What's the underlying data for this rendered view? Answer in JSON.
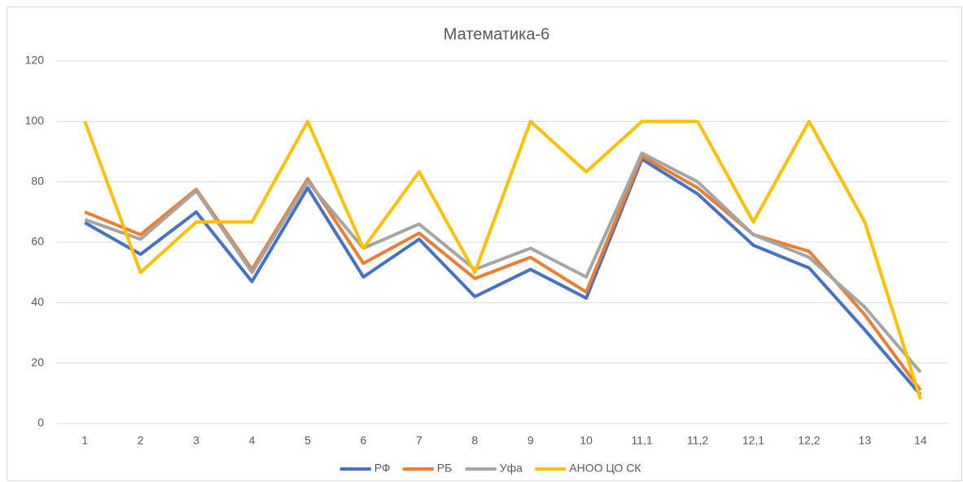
{
  "chart_data": {
    "type": "line",
    "title": "Математика-6",
    "categories": [
      "1",
      "2",
      "3",
      "4",
      "5",
      "6",
      "7",
      "8",
      "9",
      "10",
      "11,1",
      "11,2",
      "12,1",
      "12,2",
      "13",
      "14"
    ],
    "series": [
      {
        "name": "РФ",
        "color": "#4472c4",
        "values": [
          66.5,
          56,
          70,
          47,
          78,
          48.5,
          61,
          42,
          51,
          41.5,
          87.5,
          76,
          59,
          51.5,
          31,
          9.5
        ]
      },
      {
        "name": "РБ",
        "color": "#ed7d31",
        "values": [
          70,
          62.5,
          77.5,
          51,
          81,
          53,
          63,
          48,
          55,
          43.5,
          88.5,
          78,
          62.5,
          57,
          36,
          11
        ]
      },
      {
        "name": "Уфа",
        "color": "#a5a5a5",
        "values": [
          67.5,
          61,
          77,
          50,
          80,
          58,
          66,
          51,
          58,
          48.5,
          89.5,
          80,
          62.5,
          55,
          38.5,
          17
        ]
      },
      {
        "name": "АНОО ЦО СК",
        "color": "#ffc000",
        "values": [
          100,
          50,
          66.7,
          66.7,
          100,
          58,
          83.3,
          50,
          100,
          83.3,
          100,
          100,
          66.7,
          100,
          66.7,
          8
        ]
      }
    ],
    "ylim": [
      0,
      120
    ],
    "yticks": [
      0,
      20,
      40,
      60,
      80,
      100,
      120
    ],
    "grid": true,
    "legend": "bottom"
  }
}
